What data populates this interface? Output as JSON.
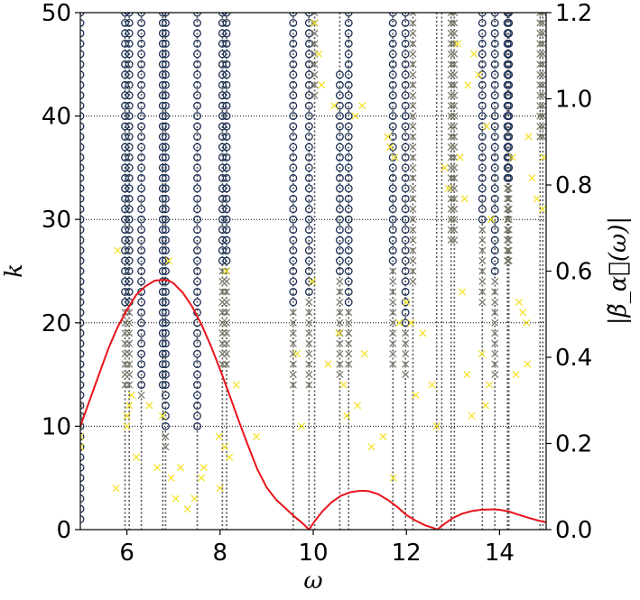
{
  "chart_data": {
    "type": "scatter",
    "title": "",
    "xlabel": "ω",
    "ylabel_left": "k",
    "ylabel_right": "|β̃_α⃗(ω)|",
    "xlim": [
      5,
      15
    ],
    "ylim_left": [
      0,
      50
    ],
    "ylim_right": [
      0.0,
      1.2
    ],
    "x_ticks": [
      6,
      8,
      10,
      12,
      14
    ],
    "x_tick_labels": [
      "6",
      "8",
      "10",
      "12",
      "14"
    ],
    "y_left_ticks": [
      0,
      10,
      20,
      30,
      40,
      50
    ],
    "y_left_tick_labels": [
      "0",
      "10",
      "20",
      "30",
      "40",
      "50"
    ],
    "y_right_ticks": [
      0.0,
      0.2,
      0.4,
      0.6,
      0.8,
      1.0,
      1.2
    ],
    "y_right_tick_labels": [
      "0.0",
      "0.2",
      "0.4",
      "0.6",
      "0.8",
      "1.0",
      "1.2"
    ],
    "grid_y_left": [
      10,
      20,
      30,
      40
    ],
    "colors": {
      "circle": "#1b2f55",
      "cross_gray": "#7c7a6c",
      "cross_yellow": "#f5e22c",
      "curve": "#e8141a",
      "vline": "#555555"
    },
    "vertical_lines": [
      5.96,
      6.05,
      6.31,
      6.77,
      6.83,
      7.51,
      8.05,
      8.14,
      9.57,
      9.91,
      10.03,
      10.57,
      10.76,
      11.71,
      11.98,
      12.14,
      12.65,
      12.76,
      12.96,
      13.03,
      13.63,
      13.9,
      14.17,
      14.2,
      14.87,
      14.93
    ],
    "circle_columns": [
      {
        "x": 5.0,
        "kmin": 1,
        "kmax": 50
      },
      {
        "x": 5.96,
        "kmin": 22,
        "kmax": 50
      },
      {
        "x": 6.05,
        "kmin": 22,
        "kmax": 50
      },
      {
        "x": 6.31,
        "kmin": 14,
        "kmax": 50
      },
      {
        "x": 6.77,
        "kmin": 14,
        "kmax": 50
      },
      {
        "x": 6.83,
        "kmin": 10,
        "kmax": 50
      },
      {
        "x": 7.51,
        "kmin": 10,
        "kmax": 50
      },
      {
        "x": 8.05,
        "kmin": 26,
        "kmax": 50
      },
      {
        "x": 8.14,
        "kmin": 26,
        "kmax": 50
      },
      {
        "x": 9.57,
        "kmin": 22,
        "kmax": 50
      },
      {
        "x": 9.91,
        "kmin": 23,
        "kmax": 50
      },
      {
        "x": 10.57,
        "kmin": 25,
        "kmax": 44
      },
      {
        "x": 10.76,
        "kmin": 22,
        "kmax": 50
      },
      {
        "x": 11.71,
        "kmin": 26,
        "kmax": 50
      },
      {
        "x": 11.98,
        "kmin": 20,
        "kmax": 50
      },
      {
        "x": 13.63,
        "kmin": 30,
        "kmax": 50
      },
      {
        "x": 13.9,
        "kmin": 25,
        "kmax": 50
      },
      {
        "x": 14.17,
        "kmin": 34,
        "kmax": 50
      },
      {
        "x": 14.2,
        "kmin": 34,
        "kmax": 50
      }
    ],
    "gray_cross_columns": [
      {
        "x": 5.0,
        "kmin": 10,
        "kmax": 12
      },
      {
        "x": 5.96,
        "kmin": 14,
        "kmax": 21
      },
      {
        "x": 6.05,
        "kmin": 14,
        "kmax": 21
      },
      {
        "x": 6.31,
        "kmin": 13,
        "kmax": 13
      },
      {
        "x": 6.83,
        "kmin": 8,
        "kmax": 9
      },
      {
        "x": 8.05,
        "kmin": 16,
        "kmax": 25
      },
      {
        "x": 8.14,
        "kmin": 16,
        "kmax": 25
      },
      {
        "x": 9.57,
        "kmin": 14,
        "kmax": 21
      },
      {
        "x": 9.91,
        "kmin": 14,
        "kmax": 22
      },
      {
        "x": 10.03,
        "kmin": 42,
        "kmax": 50
      },
      {
        "x": 10.57,
        "kmin": 15,
        "kmax": 24
      },
      {
        "x": 10.76,
        "kmin": 16,
        "kmax": 21
      },
      {
        "x": 11.71,
        "kmin": 16,
        "kmax": 25
      },
      {
        "x": 11.98,
        "kmin": 15,
        "kmax": 19
      },
      {
        "x": 12.14,
        "kmin": 24,
        "kmax": 50
      },
      {
        "x": 12.96,
        "kmin": 28,
        "kmax": 50
      },
      {
        "x": 13.03,
        "kmin": 28,
        "kmax": 50
      },
      {
        "x": 13.63,
        "kmin": 22,
        "kmax": 29
      },
      {
        "x": 13.9,
        "kmin": 15,
        "kmax": 24
      },
      {
        "x": 14.17,
        "kmin": 26,
        "kmax": 33
      },
      {
        "x": 14.2,
        "kmin": 26,
        "kmax": 33
      },
      {
        "x": 14.87,
        "kmin": 38,
        "kmax": 50
      },
      {
        "x": 14.93,
        "kmin": 38,
        "kmax": 50
      }
    ],
    "yellow_crosses": [
      [
        5.0,
        8
      ],
      [
        5.0,
        9
      ],
      [
        5.8,
        27
      ],
      [
        5.77,
        4
      ],
      [
        6.0,
        10
      ],
      [
        6.05,
        12
      ],
      [
        6.1,
        13
      ],
      [
        6.2,
        7
      ],
      [
        6.0,
        11
      ],
      [
        6.48,
        12
      ],
      [
        6.65,
        6
      ],
      [
        6.76,
        11
      ],
      [
        6.9,
        26
      ],
      [
        6.95,
        5
      ],
      [
        7.05,
        3
      ],
      [
        7.15,
        6
      ],
      [
        7.3,
        2
      ],
      [
        7.45,
        3
      ],
      [
        7.6,
        5
      ],
      [
        7.65,
        6
      ],
      [
        7.98,
        9
      ],
      [
        8.0,
        4
      ],
      [
        8.1,
        8
      ],
      [
        8.13,
        25
      ],
      [
        8.2,
        7
      ],
      [
        8.35,
        14
      ],
      [
        8.78,
        9
      ],
      [
        9.65,
        17
      ],
      [
        9.75,
        10
      ],
      [
        9.98,
        24
      ],
      [
        10.02,
        49
      ],
      [
        10.12,
        46
      ],
      [
        10.18,
        43
      ],
      [
        10.32,
        16
      ],
      [
        10.45,
        41
      ],
      [
        10.55,
        19
      ],
      [
        10.65,
        14
      ],
      [
        10.72,
        11
      ],
      [
        10.9,
        40
      ],
      [
        10.95,
        12
      ],
      [
        11.05,
        41
      ],
      [
        11.1,
        17
      ],
      [
        11.25,
        8
      ],
      [
        11.5,
        9
      ],
      [
        11.6,
        38
      ],
      [
        11.65,
        37
      ],
      [
        11.75,
        36
      ],
      [
        11.72,
        5
      ],
      [
        11.85,
        20
      ],
      [
        12.0,
        22
      ],
      [
        12.1,
        20
      ],
      [
        12.2,
        13
      ],
      [
        12.35,
        19
      ],
      [
        12.55,
        14
      ],
      [
        12.65,
        10
      ],
      [
        12.82,
        35
      ],
      [
        12.9,
        33
      ],
      [
        13.1,
        47
      ],
      [
        13.15,
        36
      ],
      [
        13.2,
        23
      ],
      [
        13.25,
        32
      ],
      [
        13.3,
        15
      ],
      [
        13.32,
        43
      ],
      [
        13.4,
        11
      ],
      [
        13.45,
        46
      ],
      [
        13.55,
        44
      ],
      [
        13.62,
        17
      ],
      [
        13.7,
        12
      ],
      [
        13.72,
        39
      ],
      [
        13.78,
        14
      ],
      [
        13.82,
        30
      ],
      [
        14.28,
        36
      ],
      [
        14.35,
        15
      ],
      [
        14.42,
        22
      ],
      [
        14.5,
        21
      ],
      [
        14.58,
        20
      ],
      [
        14.62,
        38
      ],
      [
        14.7,
        34
      ],
      [
        14.8,
        32
      ],
      [
        14.92,
        31
      ],
      [
        14.95,
        36
      ],
      [
        14.6,
        16
      ]
    ],
    "curve": {
      "name": "",
      "axis": "right",
      "x": [
        5.0,
        5.2,
        5.4,
        5.6,
        5.8,
        6.0,
        6.2,
        6.4,
        6.6,
        6.8,
        6.9,
        7.0,
        7.2,
        7.4,
        7.6,
        7.8,
        8.0,
        8.2,
        8.4,
        8.6,
        8.8,
        9.0,
        9.2,
        9.4,
        9.6,
        9.8,
        9.91,
        10.0,
        10.2,
        10.4,
        10.6,
        10.8,
        11.0,
        11.1,
        11.2,
        11.4,
        11.6,
        11.8,
        12.0,
        12.2,
        12.4,
        12.6,
        12.66,
        12.8,
        13.0,
        13.2,
        13.4,
        13.6,
        13.8,
        13.9,
        14.0,
        14.2,
        14.4,
        14.6,
        14.8,
        15.0
      ],
      "y": [
        0.24,
        0.3,
        0.36,
        0.42,
        0.47,
        0.51,
        0.545,
        0.565,
        0.578,
        0.58,
        0.578,
        0.572,
        0.55,
        0.518,
        0.476,
        0.427,
        0.372,
        0.313,
        0.253,
        0.195,
        0.14,
        0.098,
        0.07,
        0.05,
        0.03,
        0.012,
        0.0,
        0.015,
        0.043,
        0.064,
        0.079,
        0.087,
        0.09,
        0.09,
        0.089,
        0.082,
        0.069,
        0.053,
        0.034,
        0.021,
        0.01,
        0.003,
        0.0,
        0.012,
        0.027,
        0.037,
        0.043,
        0.046,
        0.047,
        0.047,
        0.046,
        0.042,
        0.035,
        0.028,
        0.022,
        0.017
      ]
    }
  }
}
